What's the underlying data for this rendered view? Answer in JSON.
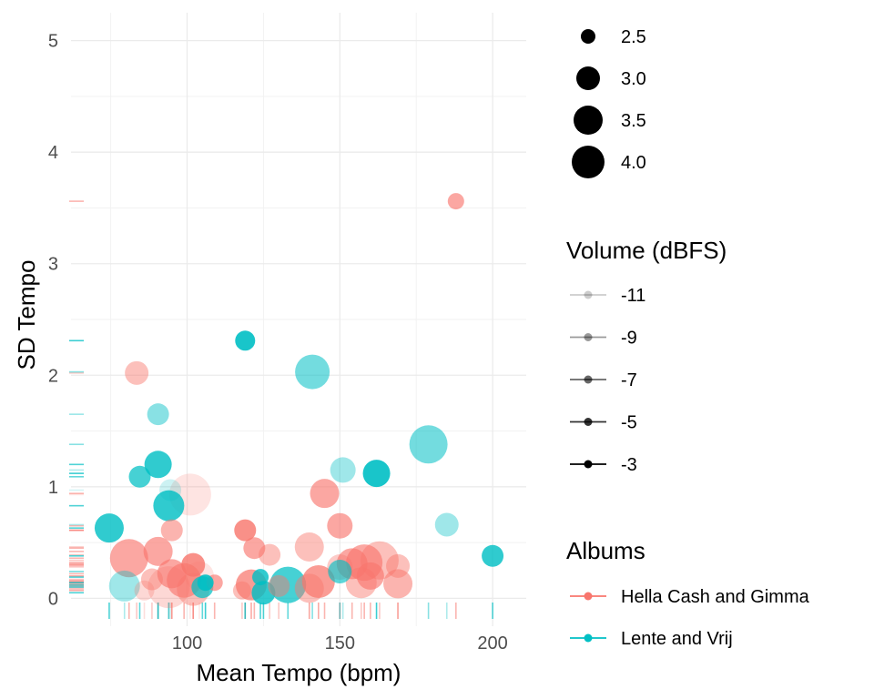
{
  "chart_data": {
    "type": "scatter",
    "xlabel": "Mean Tempo (bpm)",
    "ylabel": "SD Tempo",
    "xlim": [
      62,
      211
    ],
    "ylim": [
      -0.25,
      5.25
    ],
    "xticks": [
      100,
      150,
      200
    ],
    "yticks": [
      0,
      1,
      2,
      3,
      4,
      5
    ],
    "grid": true,
    "rug": true,
    "colors": {
      "Hella Cash and Gimma": "#F8766D",
      "Lente and Vrij": "#00BFC4"
    },
    "legends": {
      "size": {
        "title": "",
        "entries": [
          "2.5",
          "3.0",
          "3.5",
          "4.0"
        ]
      },
      "volume": {
        "title": "Volume (dBFS)",
        "entries": [
          "-11",
          "-9",
          "-7",
          "-5",
          "-3"
        ]
      },
      "albums": {
        "title": "Albums",
        "entries": [
          "Hella Cash and Gimma",
          "Lente and Vrij"
        ]
      }
    },
    "series": [
      {
        "name": "Hella Cash and Gimma",
        "points": [
          {
            "x": 188,
            "y": 3.56,
            "size": 2.6,
            "volume": -6
          },
          {
            "x": 83.5,
            "y": 2.02,
            "size": 3.0,
            "volume": -8
          },
          {
            "x": 145,
            "y": 0.94,
            "size": 3.3,
            "volume": -6
          },
          {
            "x": 101,
            "y": 0.93,
            "size": 4.0,
            "volume": -11
          },
          {
            "x": 150,
            "y": 0.65,
            "size": 3.1,
            "volume": -6
          },
          {
            "x": 95,
            "y": 0.61,
            "size": 2.9,
            "volume": -7
          },
          {
            "x": 119,
            "y": 0.61,
            "size": 2.9,
            "volume": -4
          },
          {
            "x": 140,
            "y": 0.46,
            "size": 3.3,
            "volume": -8
          },
          {
            "x": 122,
            "y": 0.45,
            "size": 2.9,
            "volume": -6
          },
          {
            "x": 90.5,
            "y": 0.42,
            "size": 3.3,
            "volume": -6
          },
          {
            "x": 127,
            "y": 0.39,
            "size": 2.9,
            "volume": -8
          },
          {
            "x": 81,
            "y": 0.36,
            "size": 3.8,
            "volume": -6
          },
          {
            "x": 163,
            "y": 0.34,
            "size": 3.8,
            "volume": -8
          },
          {
            "x": 158,
            "y": 0.32,
            "size": 3.7,
            "volume": -6
          },
          {
            "x": 154,
            "y": 0.31,
            "size": 3.4,
            "volume": -6
          },
          {
            "x": 102,
            "y": 0.3,
            "size": 3.0,
            "volume": -4
          },
          {
            "x": 169,
            "y": 0.29,
            "size": 3.0,
            "volume": -8
          },
          {
            "x": 150,
            "y": 0.28,
            "size": 3.1,
            "volume": -9
          },
          {
            "x": 95,
            "y": 0.22,
            "size": 3.3,
            "volume": -6
          },
          {
            "x": 160,
            "y": 0.2,
            "size": 3.2,
            "volume": -6
          },
          {
            "x": 104,
            "y": 0.2,
            "size": 3.3,
            "volume": -11
          },
          {
            "x": 88.5,
            "y": 0.17,
            "size": 2.9,
            "volume": -8
          },
          {
            "x": 99,
            "y": 0.16,
            "size": 3.6,
            "volume": -6
          },
          {
            "x": 143,
            "y": 0.15,
            "size": 3.5,
            "volume": -5
          },
          {
            "x": 109,
            "y": 0.14,
            "size": 2.6,
            "volume": -6
          },
          {
            "x": 157,
            "y": 0.14,
            "size": 3.4,
            "volume": -8
          },
          {
            "x": 169,
            "y": 0.13,
            "size": 3.3,
            "volume": -7
          },
          {
            "x": 121,
            "y": 0.12,
            "size": 3.4,
            "volume": -5
          },
          {
            "x": 130,
            "y": 0.11,
            "size": 2.9,
            "volume": -8
          },
          {
            "x": 94,
            "y": 0.1,
            "size": 4.0,
            "volume": -10
          },
          {
            "x": 140,
            "y": 0.09,
            "size": 3.3,
            "volume": -8
          },
          {
            "x": 102,
            "y": 0.08,
            "size": 3.5,
            "volume": -8
          },
          {
            "x": 86,
            "y": 0.07,
            "size": 2.8,
            "volume": -10
          },
          {
            "x": 118,
            "y": 0.07,
            "size": 2.7,
            "volume": -8
          }
        ]
      },
      {
        "name": "Lente and Vrij",
        "points": [
          {
            "x": 119,
            "y": 2.31,
            "size": 2.8,
            "volume": -3
          },
          {
            "x": 141,
            "y": 2.03,
            "size": 3.6,
            "volume": -7
          },
          {
            "x": 90.5,
            "y": 1.65,
            "size": 2.9,
            "volume": -8
          },
          {
            "x": 179,
            "y": 1.38,
            "size": 3.8,
            "volume": -7
          },
          {
            "x": 90.5,
            "y": 1.2,
            "size": 3.2,
            "volume": -4
          },
          {
            "x": 151,
            "y": 1.15,
            "size": 3.1,
            "volume": -9
          },
          {
            "x": 162,
            "y": 1.12,
            "size": 3.2,
            "volume": -3
          },
          {
            "x": 84.5,
            "y": 1.09,
            "size": 2.9,
            "volume": -5
          },
          {
            "x": 94.5,
            "y": 0.97,
            "size": 2.9,
            "volume": -11
          },
          {
            "x": 94,
            "y": 0.83,
            "size": 3.4,
            "volume": -4
          },
          {
            "x": 185,
            "y": 0.66,
            "size": 3.0,
            "volume": -9
          },
          {
            "x": 74.5,
            "y": 0.63,
            "size": 3.3,
            "volume": -4
          },
          {
            "x": 200,
            "y": 0.38,
            "size": 2.9,
            "volume": -4
          },
          {
            "x": 150,
            "y": 0.24,
            "size": 3.0,
            "volume": -6
          },
          {
            "x": 124,
            "y": 0.19,
            "size": 2.6,
            "volume": -4
          },
          {
            "x": 106,
            "y": 0.14,
            "size": 2.6,
            "volume": -3
          },
          {
            "x": 133,
            "y": 0.12,
            "size": 3.7,
            "volume": -5
          },
          {
            "x": 79.5,
            "y": 0.11,
            "size": 3.4,
            "volume": -9
          },
          {
            "x": 105,
            "y": 0.1,
            "size": 2.9,
            "volume": -5
          },
          {
            "x": 125,
            "y": 0.05,
            "size": 3.0,
            "volume": -4
          }
        ]
      }
    ]
  }
}
